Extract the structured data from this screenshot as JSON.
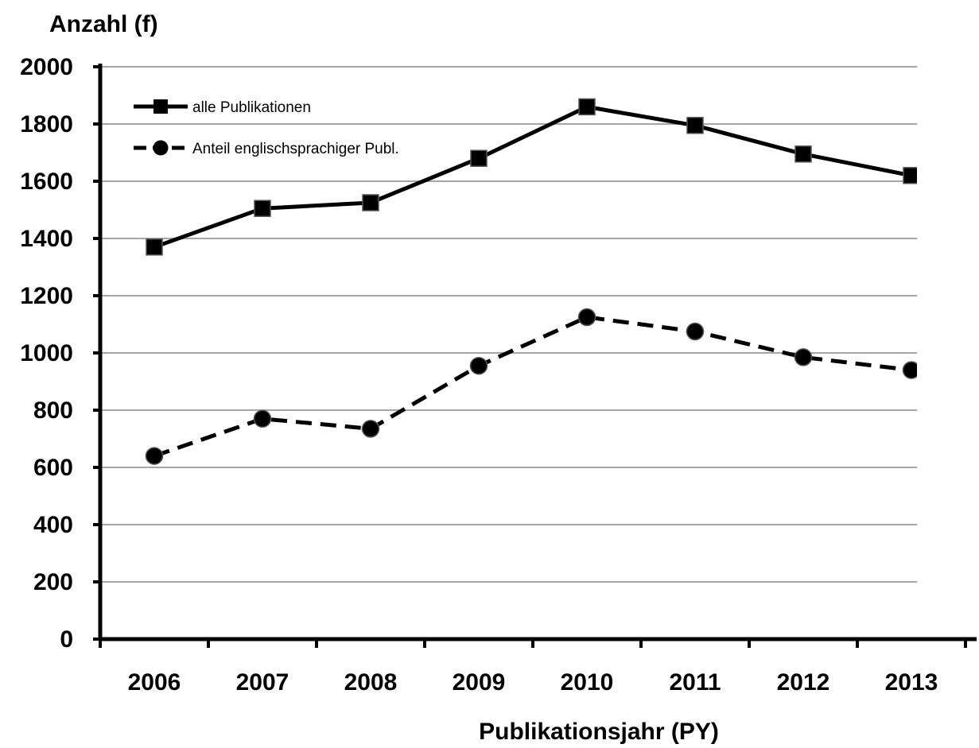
{
  "chart_data": {
    "type": "line",
    "title": "",
    "ylabel": "Anzahl (f)",
    "xlabel": "Publikationsjahr (PY)",
    "categories": [
      "2006",
      "2007",
      "2008",
      "2009",
      "2010",
      "2011",
      "2012",
      "2013"
    ],
    "ylim": [
      0,
      2000
    ],
    "yticks": [
      "0",
      "200",
      "400",
      "600",
      "800",
      "1000",
      "1200",
      "1400",
      "1600",
      "1800",
      "2000"
    ],
    "grid": true,
    "legend_position": "top-left",
    "series": [
      {
        "name": "alle Publikationen",
        "values": [
          1370,
          1505,
          1525,
          1680,
          1860,
          1795,
          1695,
          1620
        ],
        "line_style": "solid",
        "marker": "square",
        "color": "#000000"
      },
      {
        "name": "Anteil englischsprachiger Publ.",
        "values": [
          640,
          770,
          735,
          955,
          1125,
          1075,
          985,
          940
        ],
        "line_style": "dashed",
        "marker": "circle",
        "color": "#000000"
      }
    ]
  }
}
